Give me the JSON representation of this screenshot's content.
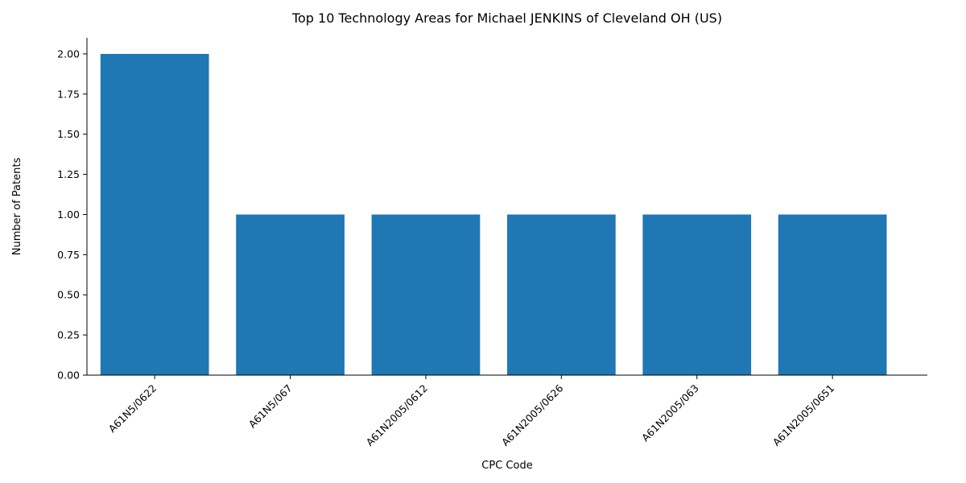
{
  "chart_data": {
    "type": "bar",
    "title": "Top 10 Technology Areas for Michael JENKINS of Cleveland OH (US)",
    "xlabel": "CPC Code",
    "ylabel": "Number of Patents",
    "categories": [
      "A61N5/0622",
      "A61N5/067",
      "A61N2005/0612",
      "A61N2005/0626",
      "A61N2005/063",
      "A61N2005/0651"
    ],
    "values": [
      2,
      1,
      1,
      1,
      1,
      1
    ],
    "ylim": [
      0,
      2.1
    ],
    "yticks": [
      "0.00",
      "0.25",
      "0.50",
      "0.75",
      "1.00",
      "1.25",
      "1.50",
      "1.75",
      "2.00"
    ],
    "grid": false,
    "colors": {
      "bar": "#1f77b4",
      "axis": "#000000"
    }
  }
}
